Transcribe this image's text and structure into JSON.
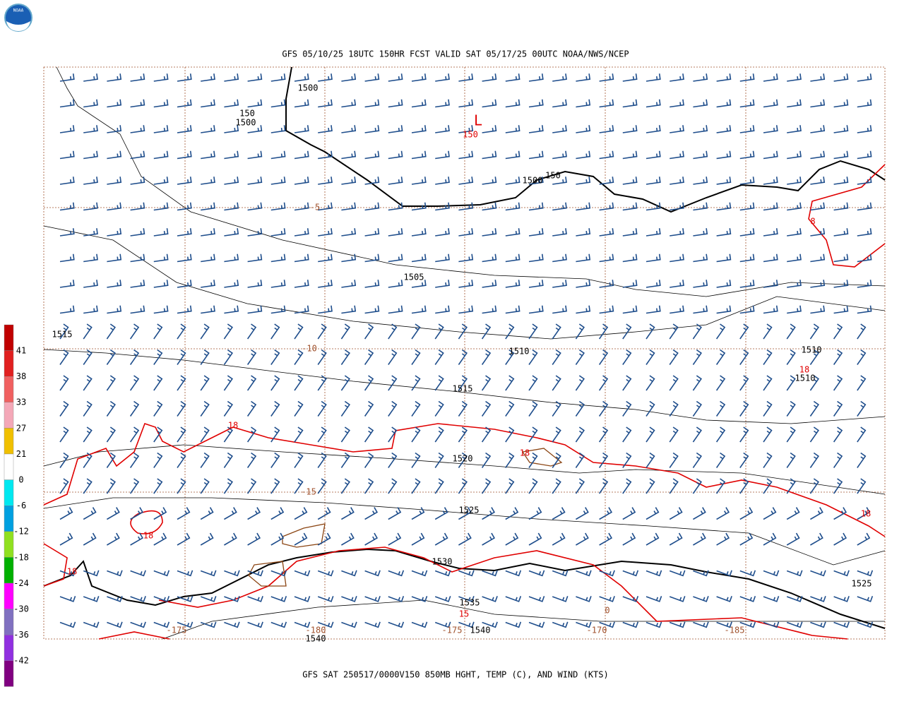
{
  "header": {
    "logo_text": "NOAA",
    "title": "GFS 05/10/25 18UTC 150HR FCST VALID SAT 05/17/25 00UTC NOAA/NWS/NCEP"
  },
  "footer": {
    "caption": "GFS SAT 250517/0000V150 850MB HGHT, TEMP (C), AND WIND (KTS)"
  },
  "colorbar": {
    "labels": [
      "41",
      "38",
      "33",
      "27",
      "21",
      "0",
      "-6",
      "-12",
      "-18",
      "-24",
      "-30",
      "-36",
      "-42"
    ],
    "colors": [
      "#c00000",
      "#e02020",
      "#f06060",
      "#f4a8b8",
      "#f0c000",
      "#ffffff",
      "#00e8f0",
      "#00a0e0",
      "#90e020",
      "#00b000",
      "#ff00ff",
      "#8070c0",
      "#9030e0",
      "#800080"
    ]
  },
  "map": {
    "height_labels": [
      "1500",
      "150",
      "1500",
      "1500",
      "150",
      "1505",
      "1515",
      "1510",
      "1510",
      "1510",
      "1515",
      "1520",
      "1525",
      "1530",
      "1535",
      "1540",
      "1525",
      "1540"
    ],
    "temperature_labels": [
      "L",
      "150",
      "8",
      "18",
      "18",
      "18",
      "18",
      "18",
      "18",
      "15"
    ],
    "brown_labels": [
      "-5",
      "-10",
      "-15",
      "-175",
      "-180",
      "-175",
      "-170",
      "-185",
      "0"
    ]
  }
}
